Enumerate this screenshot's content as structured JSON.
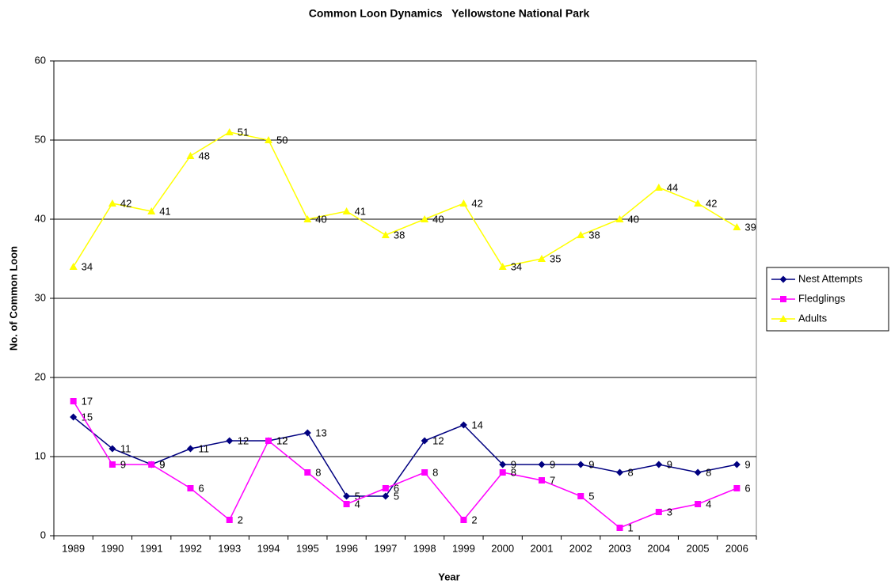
{
  "chart_data": {
    "type": "line",
    "title": "Common Loon Dynamics   Yellowstone National Park",
    "x_label": "Year",
    "y_label": "No. of Common Loon",
    "categories": [
      "1989",
      "1990",
      "1991",
      "1992",
      "1993",
      "1994",
      "1995",
      "1996",
      "1997",
      "1998",
      "1999",
      "2000",
      "2001",
      "2002",
      "2003",
      "2004",
      "2005",
      "2006"
    ],
    "series": [
      {
        "name": "Nest Attempts",
        "color": "#000080",
        "marker": "diamond",
        "values": [
          15,
          11,
          9,
          11,
          12,
          12,
          13,
          5,
          5,
          12,
          14,
          9,
          9,
          9,
          8,
          9,
          8,
          9
        ]
      },
      {
        "name": "Fledglings",
        "color": "#ff00ff",
        "marker": "square",
        "values": [
          17,
          9,
          9,
          6,
          2,
          12,
          8,
          4,
          6,
          8,
          2,
          8,
          7,
          5,
          1,
          3,
          4,
          6
        ]
      },
      {
        "name": "Adults",
        "color": "#ffff00",
        "marker": "triangle",
        "values": [
          34,
          42,
          41,
          48,
          51,
          50,
          40,
          41,
          38,
          40,
          42,
          34,
          35,
          38,
          40,
          44,
          42,
          39
        ]
      }
    ],
    "ylim": [
      0,
      60
    ],
    "yticks": [
      0,
      10,
      20,
      30,
      40,
      50,
      60
    ],
    "grid": true,
    "legend": "right",
    "data_labels": true
  }
}
